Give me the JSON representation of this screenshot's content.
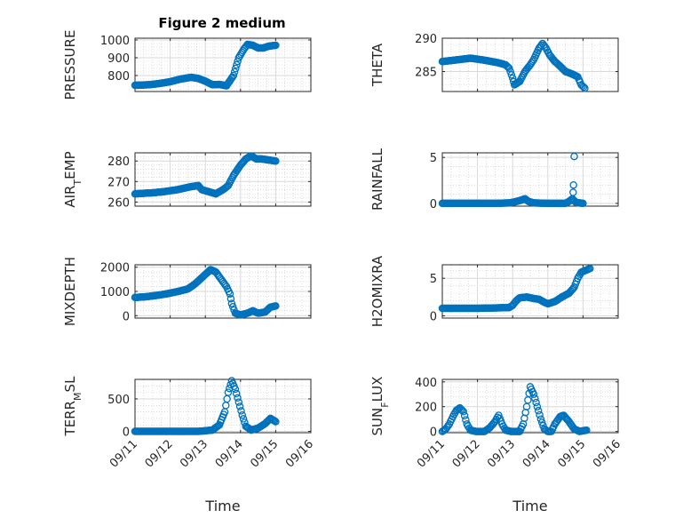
{
  "title": "Figure 2 medium",
  "colors": {
    "marker": "#0072BD",
    "axis": "#262626",
    "grid": "#d9d9d9",
    "minor_grid": "#c8c8c8"
  },
  "chart_data": [
    {
      "type": "scatter",
      "ylabel": "PRESSURE",
      "ylim": [
        710,
        1010
      ],
      "yticks": [
        800,
        900,
        1000
      ],
      "xlim": [
        0,
        5
      ],
      "xticks": [
        0,
        1,
        2,
        3,
        4,
        5
      ],
      "xticklabels": [],
      "grid": true,
      "curve": [
        [
          0.0,
          745
        ],
        [
          0.4,
          748
        ],
        [
          0.7,
          755
        ],
        [
          1.0,
          765
        ],
        [
          1.3,
          780
        ],
        [
          1.6,
          790
        ],
        [
          1.8,
          783
        ],
        [
          2.0,
          768
        ],
        [
          2.2,
          748
        ],
        [
          2.4,
          750
        ],
        [
          2.6,
          742
        ],
        [
          2.8,
          800
        ],
        [
          2.95,
          900
        ],
        [
          3.1,
          950
        ],
        [
          3.2,
          975
        ],
        [
          3.35,
          970
        ],
        [
          3.5,
          955
        ],
        [
          3.65,
          955
        ],
        [
          3.8,
          965
        ],
        [
          4.0,
          970
        ]
      ]
    },
    {
      "type": "scatter",
      "ylabel": "THETA",
      "ylim": [
        282,
        290
      ],
      "yticks": [
        285,
        290
      ],
      "xlim": [
        0,
        5
      ],
      "xticks": [
        0,
        1,
        2,
        3,
        4,
        5
      ],
      "xticklabels": [],
      "grid": true,
      "curve": [
        [
          0.0,
          286.5
        ],
        [
          0.5,
          286.8
        ],
        [
          0.8,
          287.0
        ],
        [
          1.2,
          286.7
        ],
        [
          1.6,
          286.3
        ],
        [
          1.8,
          286.0
        ],
        [
          1.9,
          285.5
        ],
        [
          2.0,
          284.0
        ],
        [
          2.05,
          283.0
        ],
        [
          2.2,
          283.5
        ],
        [
          2.35,
          285.0
        ],
        [
          2.5,
          286.0
        ],
        [
          2.6,
          286.8
        ],
        [
          2.75,
          288.5
        ],
        [
          2.85,
          289.2
        ],
        [
          2.95,
          288.5
        ],
        [
          3.05,
          287.5
        ],
        [
          3.2,
          286.5
        ],
        [
          3.35,
          285.8
        ],
        [
          3.5,
          285.0
        ],
        [
          3.7,
          284.6
        ],
        [
          3.85,
          284.2
        ],
        [
          3.95,
          283.0
        ],
        [
          4.05,
          282.5
        ]
      ]
    },
    {
      "type": "scatter",
      "ylabel": "AIR",
      "ylabel_sub": "T",
      "ylabel_suffix": "EMP",
      "ylim": [
        258,
        284
      ],
      "yticks": [
        260,
        270,
        280
      ],
      "xlim": [
        0,
        5
      ],
      "xticks": [
        0,
        1,
        2,
        3,
        4,
        5
      ],
      "xticklabels": [],
      "grid": true,
      "curve": [
        [
          0.0,
          264
        ],
        [
          0.5,
          264.5
        ],
        [
          0.8,
          265
        ],
        [
          1.2,
          266
        ],
        [
          1.6,
          267.5
        ],
        [
          1.8,
          268
        ],
        [
          1.9,
          266
        ],
        [
          2.1,
          265
        ],
        [
          2.3,
          264
        ],
        [
          2.5,
          266
        ],
        [
          2.65,
          268
        ],
        [
          2.8,
          273
        ],
        [
          3.0,
          278
        ],
        [
          3.15,
          281
        ],
        [
          3.3,
          282.5
        ],
        [
          3.45,
          281
        ],
        [
          3.6,
          281
        ],
        [
          3.8,
          280.5
        ],
        [
          4.0,
          280
        ]
      ]
    },
    {
      "type": "scatter",
      "ylabel": "RAINFALL",
      "ylim": [
        -0.3,
        5.5
      ],
      "yticks": [
        0,
        5
      ],
      "xlim": [
        0,
        5
      ],
      "xticks": [
        0,
        1,
        2,
        3,
        4,
        5
      ],
      "xticklabels": [],
      "grid": true,
      "curve": [
        [
          0.0,
          0
        ],
        [
          0.5,
          0
        ],
        [
          1.0,
          0
        ],
        [
          1.5,
          0
        ],
        [
          1.9,
          0.05
        ],
        [
          2.05,
          0.15
        ],
        [
          2.2,
          0.3
        ],
        [
          2.35,
          0.5
        ],
        [
          2.45,
          0.2
        ],
        [
          2.6,
          0.05
        ],
        [
          3.0,
          0
        ],
        [
          3.5,
          0
        ],
        [
          3.6,
          0.2
        ],
        [
          3.7,
          0.5
        ],
        [
          3.8,
          0.1
        ],
        [
          4.0,
          0
        ]
      ],
      "extra_points": [
        [
          3.75,
          5.1
        ],
        [
          3.73,
          2.0
        ],
        [
          3.72,
          1.2
        ]
      ]
    },
    {
      "type": "scatter",
      "ylabel": "MIXDEPTH",
      "ylim": [
        -100,
        2100
      ],
      "yticks": [
        0,
        1000,
        2000
      ],
      "xlim": [
        0,
        5
      ],
      "xticks": [
        0,
        1,
        2,
        3,
        4,
        5
      ],
      "xticklabels": [],
      "grid": true,
      "curve": [
        [
          0.0,
          750
        ],
        [
          0.3,
          780
        ],
        [
          0.6,
          830
        ],
        [
          0.9,
          900
        ],
        [
          1.2,
          990
        ],
        [
          1.5,
          1100
        ],
        [
          1.7,
          1300
        ],
        [
          1.85,
          1500
        ],
        [
          2.0,
          1700
        ],
        [
          2.15,
          1900
        ],
        [
          2.3,
          1800
        ],
        [
          2.4,
          1600
        ],
        [
          2.5,
          1400
        ],
        [
          2.6,
          1200
        ],
        [
          2.7,
          900
        ],
        [
          2.75,
          500
        ],
        [
          2.85,
          100
        ],
        [
          3.0,
          30
        ],
        [
          3.2,
          100
        ],
        [
          3.35,
          200
        ],
        [
          3.5,
          100
        ],
        [
          3.7,
          150
        ],
        [
          3.85,
          350
        ],
        [
          4.0,
          400
        ]
      ]
    },
    {
      "type": "scatter",
      "ylabel": "H2OMIXRA",
      "ylim": [
        -0.3,
        6.8
      ],
      "yticks": [
        0,
        5
      ],
      "xlim": [
        0,
        5
      ],
      "xticks": [
        0,
        1,
        2,
        3,
        4,
        5
      ],
      "xticklabels": [],
      "grid": true,
      "curve": [
        [
          0.0,
          1.0
        ],
        [
          0.5,
          1.0
        ],
        [
          1.0,
          1.0
        ],
        [
          1.5,
          1.05
        ],
        [
          1.9,
          1.1
        ],
        [
          2.0,
          1.4
        ],
        [
          2.1,
          2.0
        ],
        [
          2.2,
          2.4
        ],
        [
          2.4,
          2.5
        ],
        [
          2.6,
          2.3
        ],
        [
          2.75,
          2.2
        ],
        [
          2.9,
          1.8
        ],
        [
          3.0,
          1.6
        ],
        [
          3.2,
          1.9
        ],
        [
          3.4,
          2.5
        ],
        [
          3.6,
          3.0
        ],
        [
          3.75,
          3.8
        ],
        [
          3.85,
          5.0
        ],
        [
          3.95,
          5.8
        ],
        [
          4.1,
          6.1
        ],
        [
          4.2,
          6.3
        ]
      ]
    },
    {
      "type": "scatter",
      "ylabel": "TERR",
      "ylabel_sub": "M",
      "ylabel_suffix": "SL",
      "ylim": [
        -20,
        800
      ],
      "yticks": [
        0,
        500
      ],
      "xlim": [
        0,
        5
      ],
      "xticks": [
        0,
        1,
        2,
        3,
        4,
        5
      ],
      "xticklabels": [
        "09/11",
        "09/12",
        "09/13",
        "09/14",
        "09/15",
        "09/16"
      ],
      "xlabel": "Time",
      "grid": true,
      "curve": [
        [
          0.0,
          0
        ],
        [
          1.0,
          0
        ],
        [
          1.8,
          0
        ],
        [
          2.2,
          20
        ],
        [
          2.4,
          100
        ],
        [
          2.55,
          300
        ],
        [
          2.65,
          600
        ],
        [
          2.75,
          780
        ],
        [
          2.85,
          650
        ],
        [
          2.95,
          450
        ],
        [
          3.05,
          250
        ],
        [
          3.15,
          80
        ],
        [
          3.3,
          20
        ],
        [
          3.5,
          50
        ],
        [
          3.7,
          120
        ],
        [
          3.85,
          200
        ],
        [
          4.0,
          150
        ]
      ]
    },
    {
      "type": "scatter",
      "ylabel": "SUN",
      "ylabel_sub": "F",
      "ylabel_suffix": "LUX",
      "ylim": [
        -10,
        420
      ],
      "yticks": [
        0,
        200,
        400
      ],
      "xlim": [
        0,
        5
      ],
      "xticks": [
        0,
        1,
        2,
        3,
        4,
        5
      ],
      "xticklabels": [
        "09/11",
        "09/12",
        "09/13",
        "09/14",
        "09/15",
        "09/16"
      ],
      "xlabel": "Time",
      "grid": true,
      "curve": [
        [
          0.0,
          0
        ],
        [
          0.1,
          20
        ],
        [
          0.2,
          60
        ],
        [
          0.3,
          120
        ],
        [
          0.4,
          170
        ],
        [
          0.5,
          190
        ],
        [
          0.6,
          160
        ],
        [
          0.7,
          60
        ],
        [
          0.8,
          10
        ],
        [
          0.95,
          0
        ],
        [
          1.2,
          0
        ],
        [
          1.35,
          30
        ],
        [
          1.5,
          80
        ],
        [
          1.6,
          130
        ],
        [
          1.7,
          60
        ],
        [
          1.8,
          10
        ],
        [
          1.95,
          0
        ],
        [
          2.2,
          0
        ],
        [
          2.3,
          60
        ],
        [
          2.4,
          200
        ],
        [
          2.5,
          360
        ],
        [
          2.6,
          300
        ],
        [
          2.7,
          200
        ],
        [
          2.8,
          100
        ],
        [
          2.9,
          20
        ],
        [
          3.0,
          0
        ],
        [
          3.1,
          0
        ],
        [
          3.2,
          60
        ],
        [
          3.35,
          120
        ],
        [
          3.45,
          130
        ],
        [
          3.6,
          80
        ],
        [
          3.75,
          20
        ],
        [
          3.9,
          0
        ],
        [
          4.1,
          10
        ]
      ]
    }
  ]
}
